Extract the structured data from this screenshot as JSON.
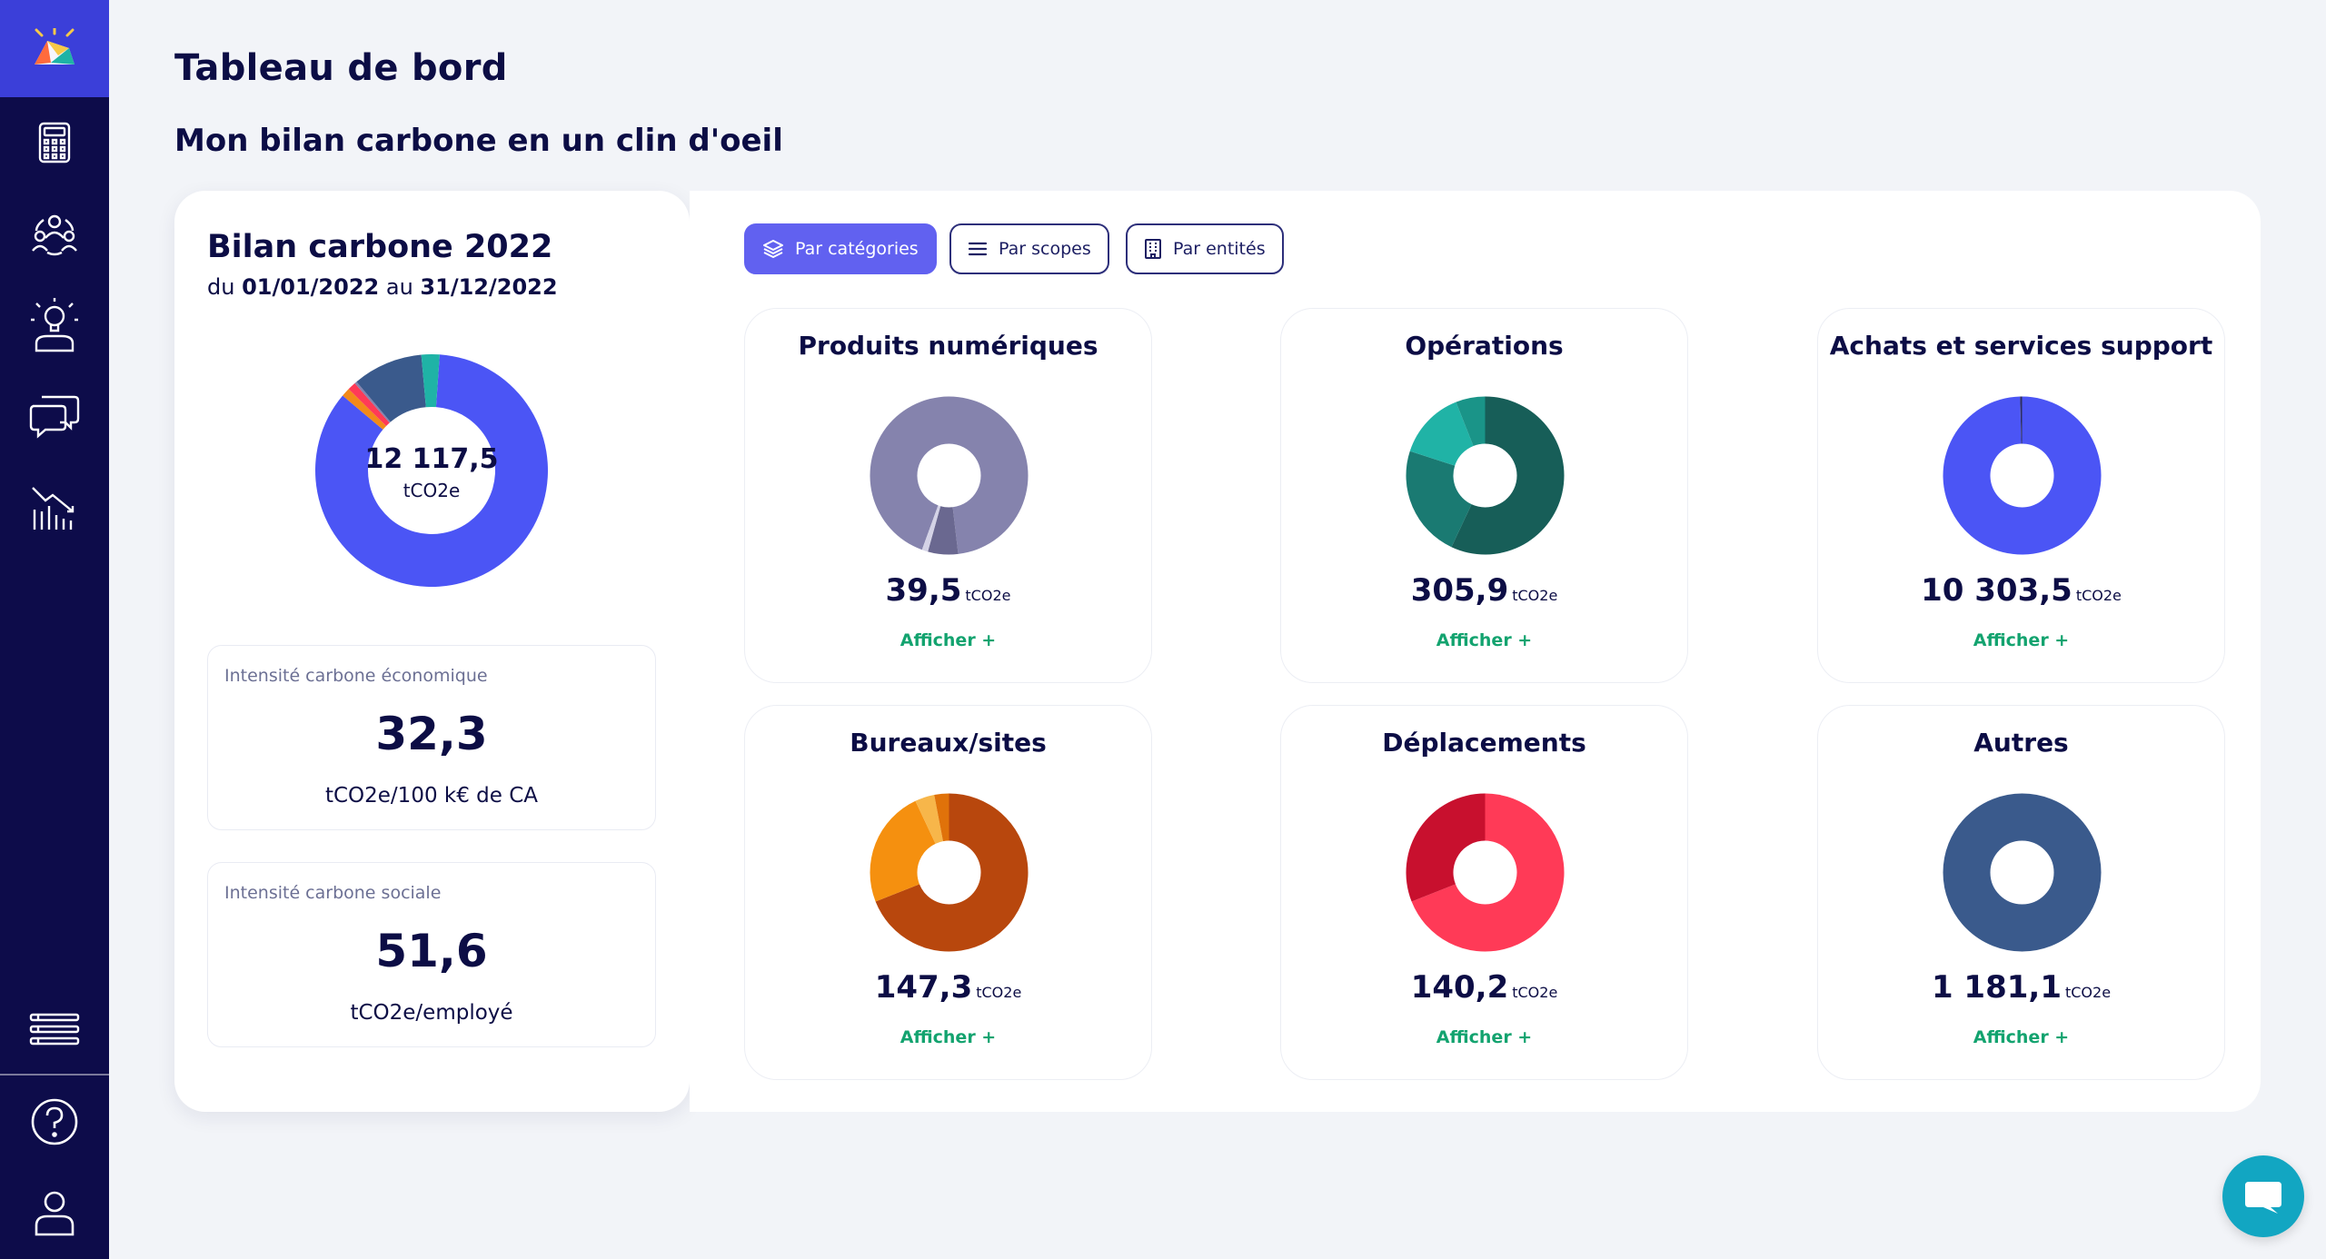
{
  "page": {
    "title": "Tableau de bord",
    "section_title": "Mon bilan carbone en un clin d'oeil"
  },
  "sidebar": {
    "items": [
      {
        "icon": "calculator-icon"
      },
      {
        "icon": "team-icon"
      },
      {
        "icon": "idea-person-icon"
      },
      {
        "icon": "chat-bubbles-icon"
      },
      {
        "icon": "chart-decline-icon"
      },
      {
        "icon": "list-icon"
      },
      {
        "icon": "help-icon"
      },
      {
        "icon": "user-icon"
      }
    ]
  },
  "summary": {
    "title": "Bilan carbone 2022",
    "dates_prefix": "du",
    "date_start": "01/01/2022",
    "dates_mid": "au",
    "date_end": "31/12/2022",
    "total_value": "12 117,5",
    "total_unit": "tCO2e",
    "breakdown": [
      {
        "name": "Produits numériques",
        "value": 39.5,
        "color": "#8583ad"
      },
      {
        "name": "Opérations",
        "value": 305.9,
        "color": "#1fb3a6"
      },
      {
        "name": "Achats et services support",
        "value": 10303.5,
        "color": "#4b55f5"
      },
      {
        "name": "Bureaux/sites",
        "value": 147.3,
        "color": "#f28a1a"
      },
      {
        "name": "Déplacements",
        "value": 140.2,
        "color": "#ff3a57"
      },
      {
        "name": "Autres",
        "value": 1181.1,
        "color": "#3a5a8c"
      }
    ]
  },
  "kpis": {
    "economic": {
      "label": "Intensité carbone économique",
      "value": "32,3",
      "unit": "tCO2e/100 k€ de CA"
    },
    "social": {
      "label": "Intensité carbone sociale",
      "value": "51,6",
      "unit": "tCO2e/employé"
    }
  },
  "tabs": [
    {
      "label": "Par catégories",
      "icon": "layers-icon",
      "active": true
    },
    {
      "label": "Par scopes",
      "icon": "menu-lines-icon",
      "active": false
    },
    {
      "label": "Par entités",
      "icon": "building-icon",
      "active": false
    }
  ],
  "categories": [
    {
      "title": "Produits numériques",
      "value": "39,5",
      "unit": "tCO2e",
      "link": "Afficher +",
      "segments": [
        {
          "value": 90,
          "color": "#8583ad"
        },
        {
          "value": 6,
          "color": "#6a6890"
        },
        {
          "value": 1.2,
          "color": "#d4d3e6"
        }
      ]
    },
    {
      "title": "Opérations",
      "value": "305,9",
      "unit": "tCO2e",
      "link": "Afficher +",
      "segments": [
        {
          "value": 57,
          "color": "#175e58"
        },
        {
          "value": 23,
          "color": "#1a7a72"
        },
        {
          "value": 14,
          "color": "#20b3a6"
        },
        {
          "value": 6,
          "color": "#1a9488"
        }
      ]
    },
    {
      "title": "Achats et services support",
      "value": "10 303,5",
      "unit": "tCO2e",
      "link": "Afficher +",
      "segments": [
        {
          "value": 99.6,
          "color": "#4b55f5"
        },
        {
          "value": 0.4,
          "color": "#2e2e5e"
        }
      ]
    },
    {
      "title": "Bureaux/sites",
      "value": "147,3",
      "unit": "tCO2e",
      "link": "Afficher +",
      "segments": [
        {
          "value": 69,
          "color": "#b8470d"
        },
        {
          "value": 24,
          "color": "#f5900f"
        },
        {
          "value": 4,
          "color": "#f7b64a"
        },
        {
          "value": 3,
          "color": "#e0720a"
        }
      ]
    },
    {
      "title": "Déplacements",
      "value": "140,2",
      "unit": "tCO2e",
      "link": "Afficher +",
      "segments": [
        {
          "value": 69,
          "color": "#ff3a57"
        },
        {
          "value": 31,
          "color": "#c8102e"
        }
      ]
    },
    {
      "title": "Autres",
      "value": "1 181,1",
      "unit": "tCO2e",
      "link": "Afficher +",
      "segments": [
        {
          "value": 100,
          "color": "#3a5a8c"
        }
      ]
    }
  ]
}
